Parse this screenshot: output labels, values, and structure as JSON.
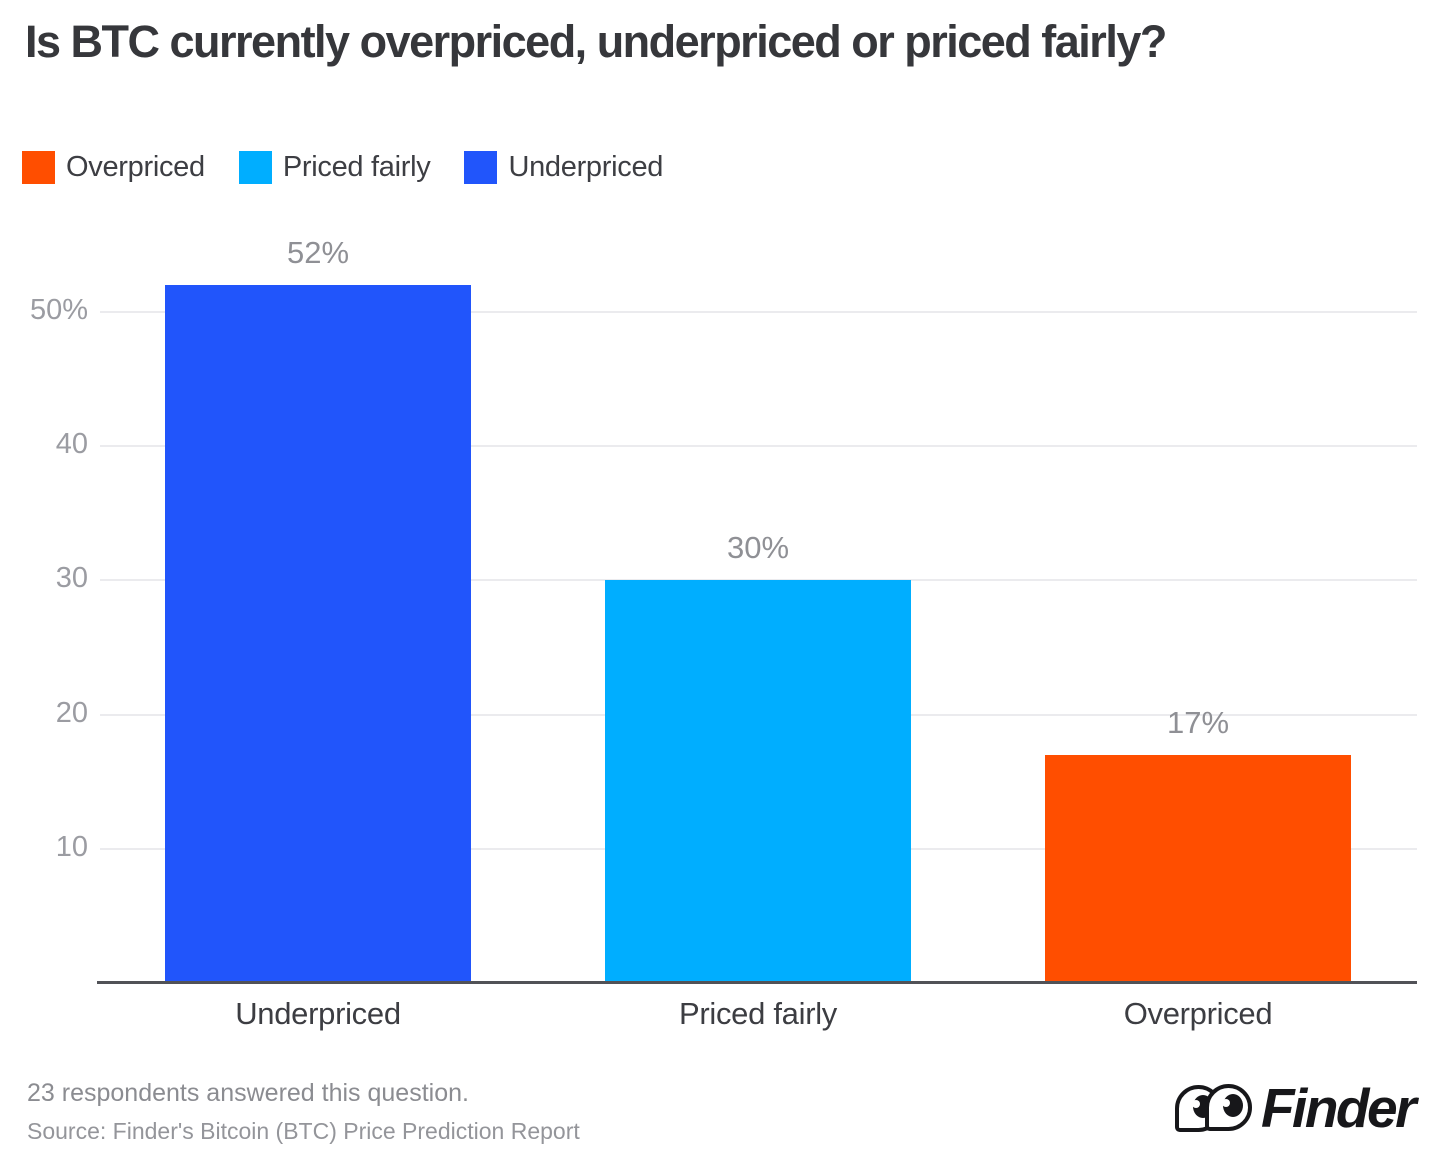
{
  "title": "Is BTC currently overpriced, underpriced or priced fairly?",
  "legend": [
    {
      "label": "Overpriced",
      "color": "#FF4E00"
    },
    {
      "label": "Priced fairly",
      "color": "#00AEFF"
    },
    {
      "label": "Underpriced",
      "color": "#2155FB"
    }
  ],
  "chart_data": {
    "type": "bar",
    "title": "Is BTC currently overpriced, underpriced or priced fairly?",
    "categories": [
      "Underpriced",
      "Priced fairly",
      "Overpriced"
    ],
    "values": [
      52,
      30,
      17
    ],
    "value_labels": [
      "52%",
      "30%",
      "17%"
    ],
    "bar_colors": [
      "#2155FB",
      "#00AEFF",
      "#FF4E00"
    ],
    "xlabel": "",
    "ylabel": "",
    "ylim": [
      0,
      55
    ],
    "yticks": [
      {
        "value": 10,
        "label": "10"
      },
      {
        "value": 20,
        "label": "20"
      },
      {
        "value": 30,
        "label": "30"
      },
      {
        "value": 40,
        "label": "40"
      },
      {
        "value": 50,
        "label": "50%"
      }
    ],
    "grid": true,
    "legend_position": "top-left"
  },
  "footer": {
    "respondents": "23 respondents answered this question.",
    "source": "Source: Finder's Bitcoin (BTC) Price Prediction Report"
  },
  "branding": {
    "logo_text": "Finder"
  }
}
